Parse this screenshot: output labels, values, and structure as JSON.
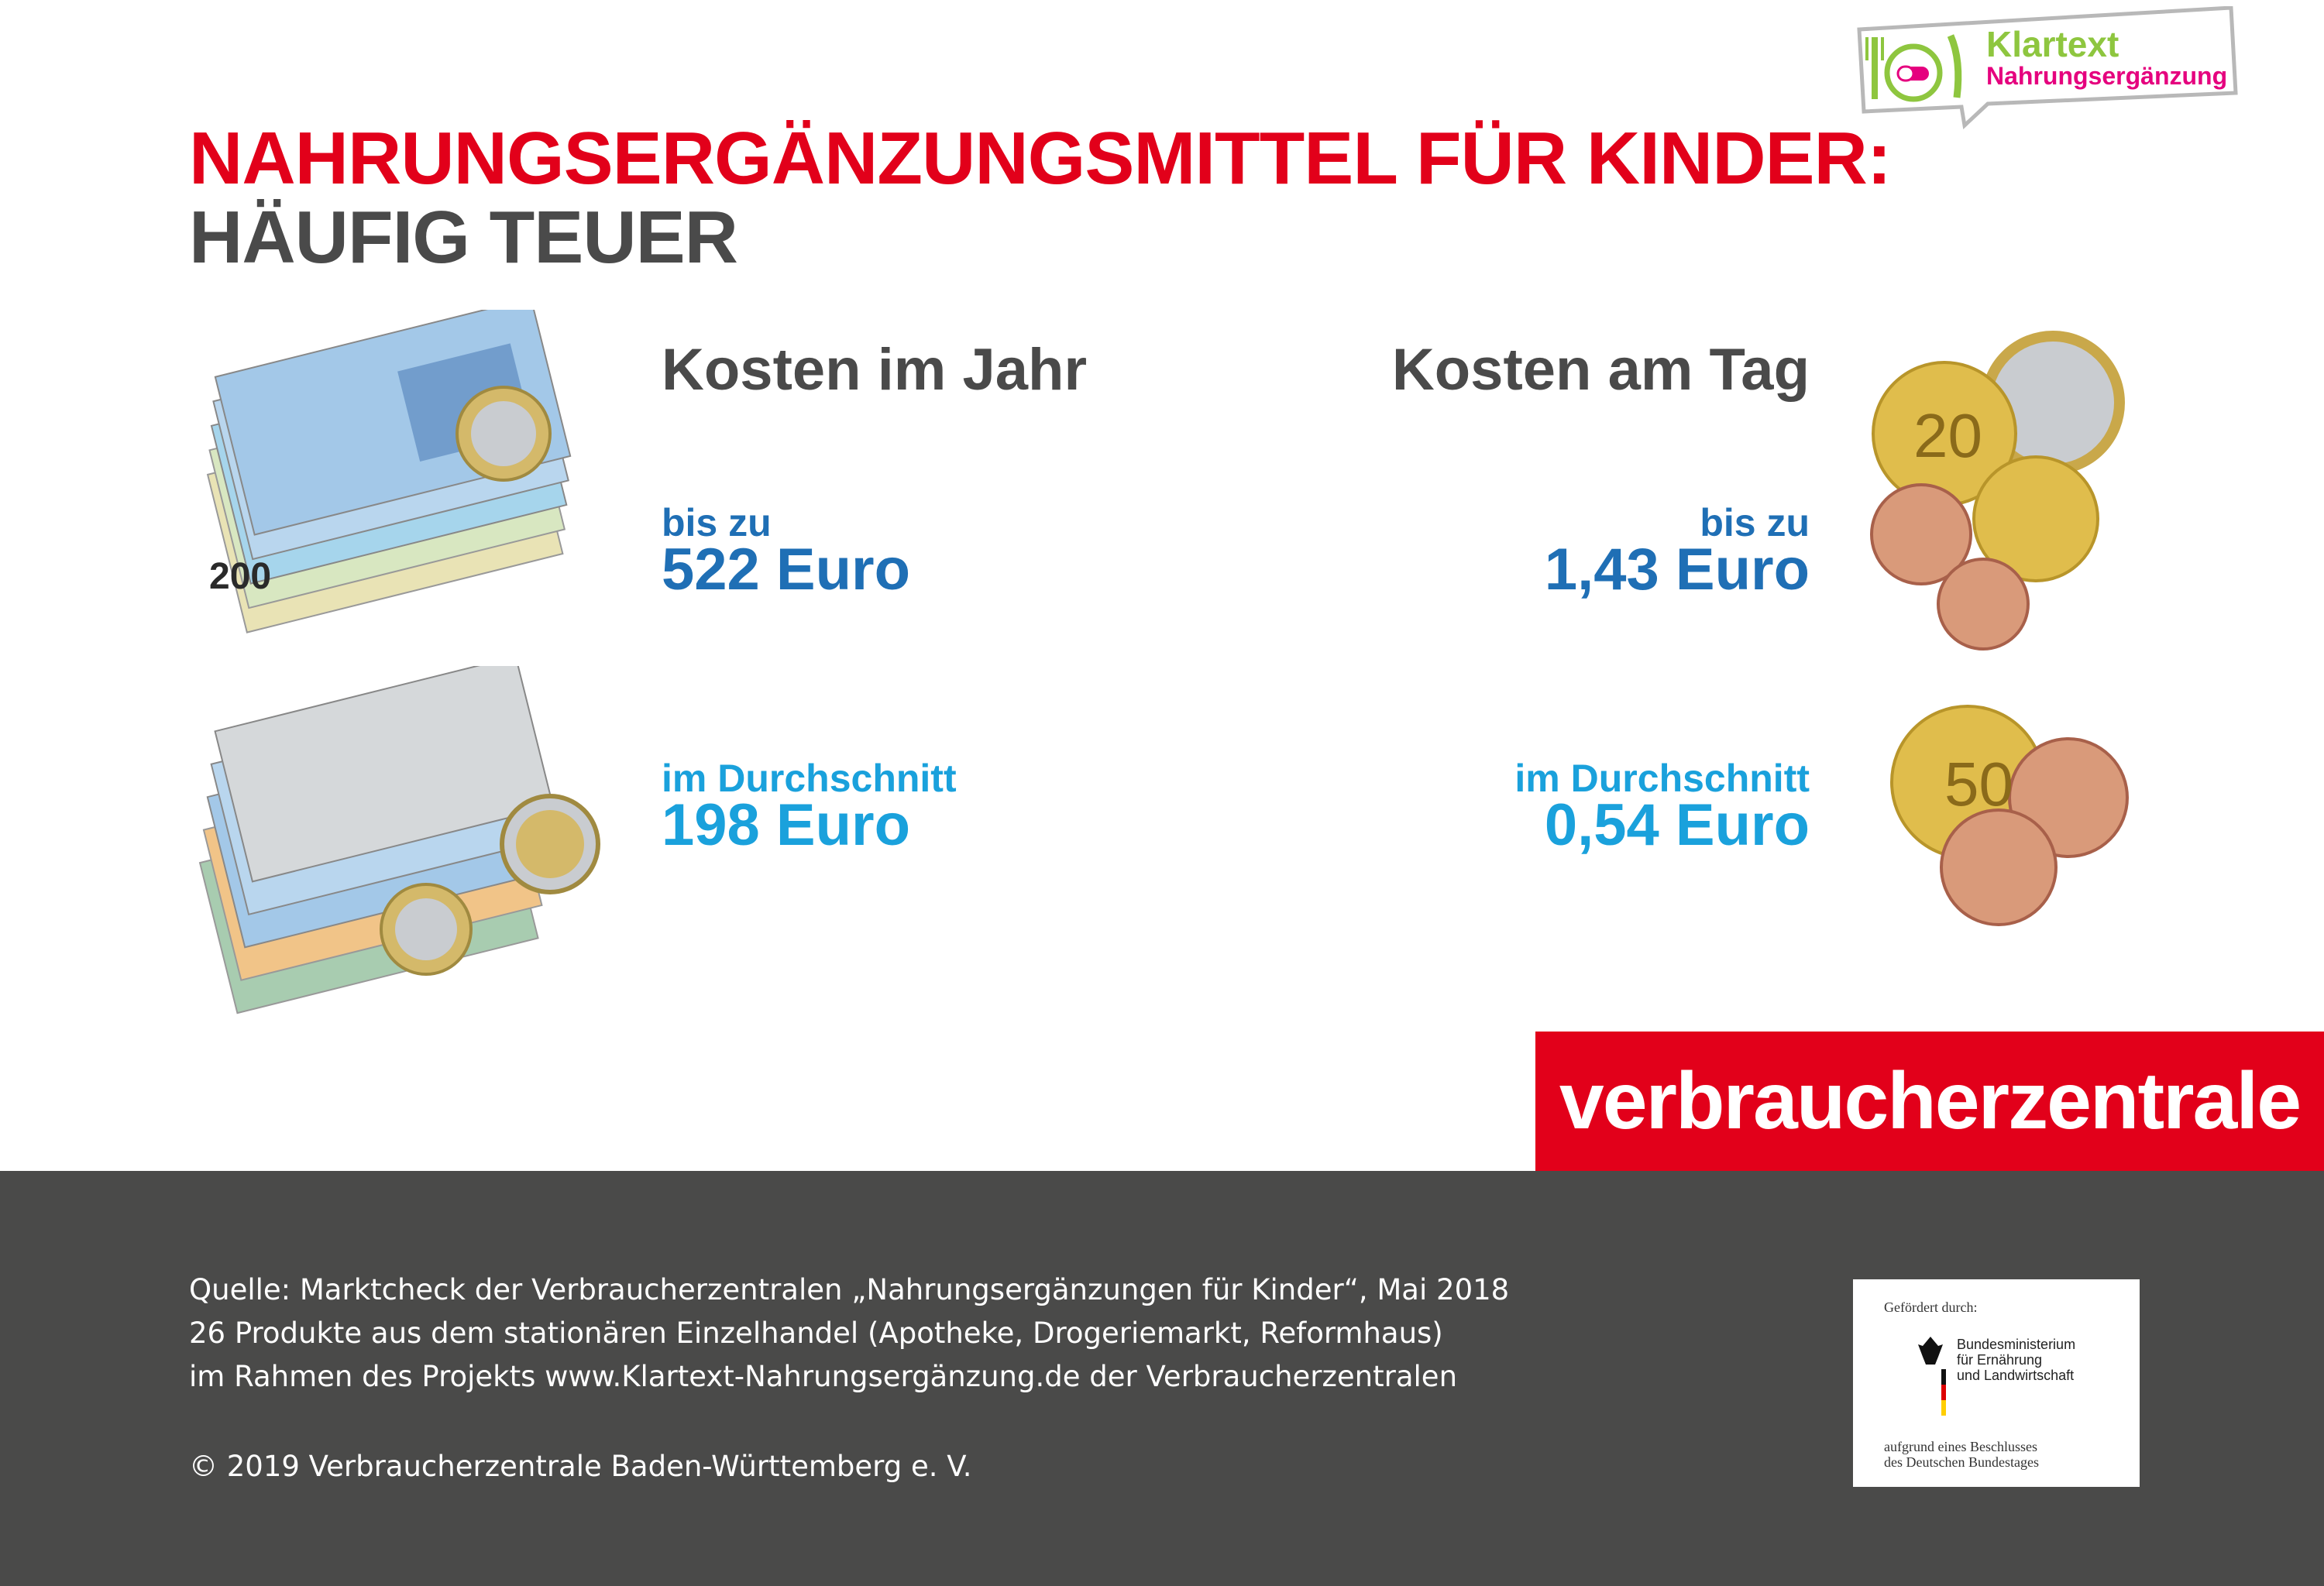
{
  "header": {
    "title_line1": "NAHRUNGSERGÄNZUNGSMITTEL FÜR KINDER:",
    "title_line2": "HÄUFIG TEUER"
  },
  "badge": {
    "line1": "Klartext",
    "line2": "Nahrungsergänzung",
    "icon": "fork-pill-knife-icon"
  },
  "left_column": {
    "title": "Kosten im Jahr",
    "max_label": "bis zu",
    "max_value": "522 Euro",
    "avg_label": "im Durchschnitt",
    "avg_value": "198 Euro"
  },
  "right_column": {
    "title": "Kosten am Tag",
    "max_label": "bis zu",
    "max_value": "1,43 Euro",
    "avg_label": "im Durchschnitt",
    "avg_value": "0,54 Euro"
  },
  "brand": {
    "name": "verbraucherzentrale"
  },
  "footer": {
    "source_line1": "Quelle: Marktcheck der Verbraucherzentralen „Nahrungsergänzungen für Kinder“, Mai 2018",
    "source_line2": "26 Produkte aus dem stationären Einzelhandel (Apotheke, Drogeriemarkt, Reformhaus)",
    "source_line3": "im Rahmen des Projekts www.Klartext-Nahrungsergänzung.de der Verbraucherzentralen",
    "copyright": "© 2019 Verbraucherzentrale Baden-Württemberg e. V."
  },
  "sponsor": {
    "intro": "Gefördert durch:",
    "ministry": "Bundesministerium\nfür Ernährung\nund Landwirtschaft",
    "note": "aufgrund eines Beschlusses\ndes Deutschen Bundestages"
  },
  "colors": {
    "brand_red": "#e2001a",
    "dark_blue": "#1f6fb5",
    "light_blue": "#1aa1dc",
    "grey": "#4a4a4a"
  }
}
